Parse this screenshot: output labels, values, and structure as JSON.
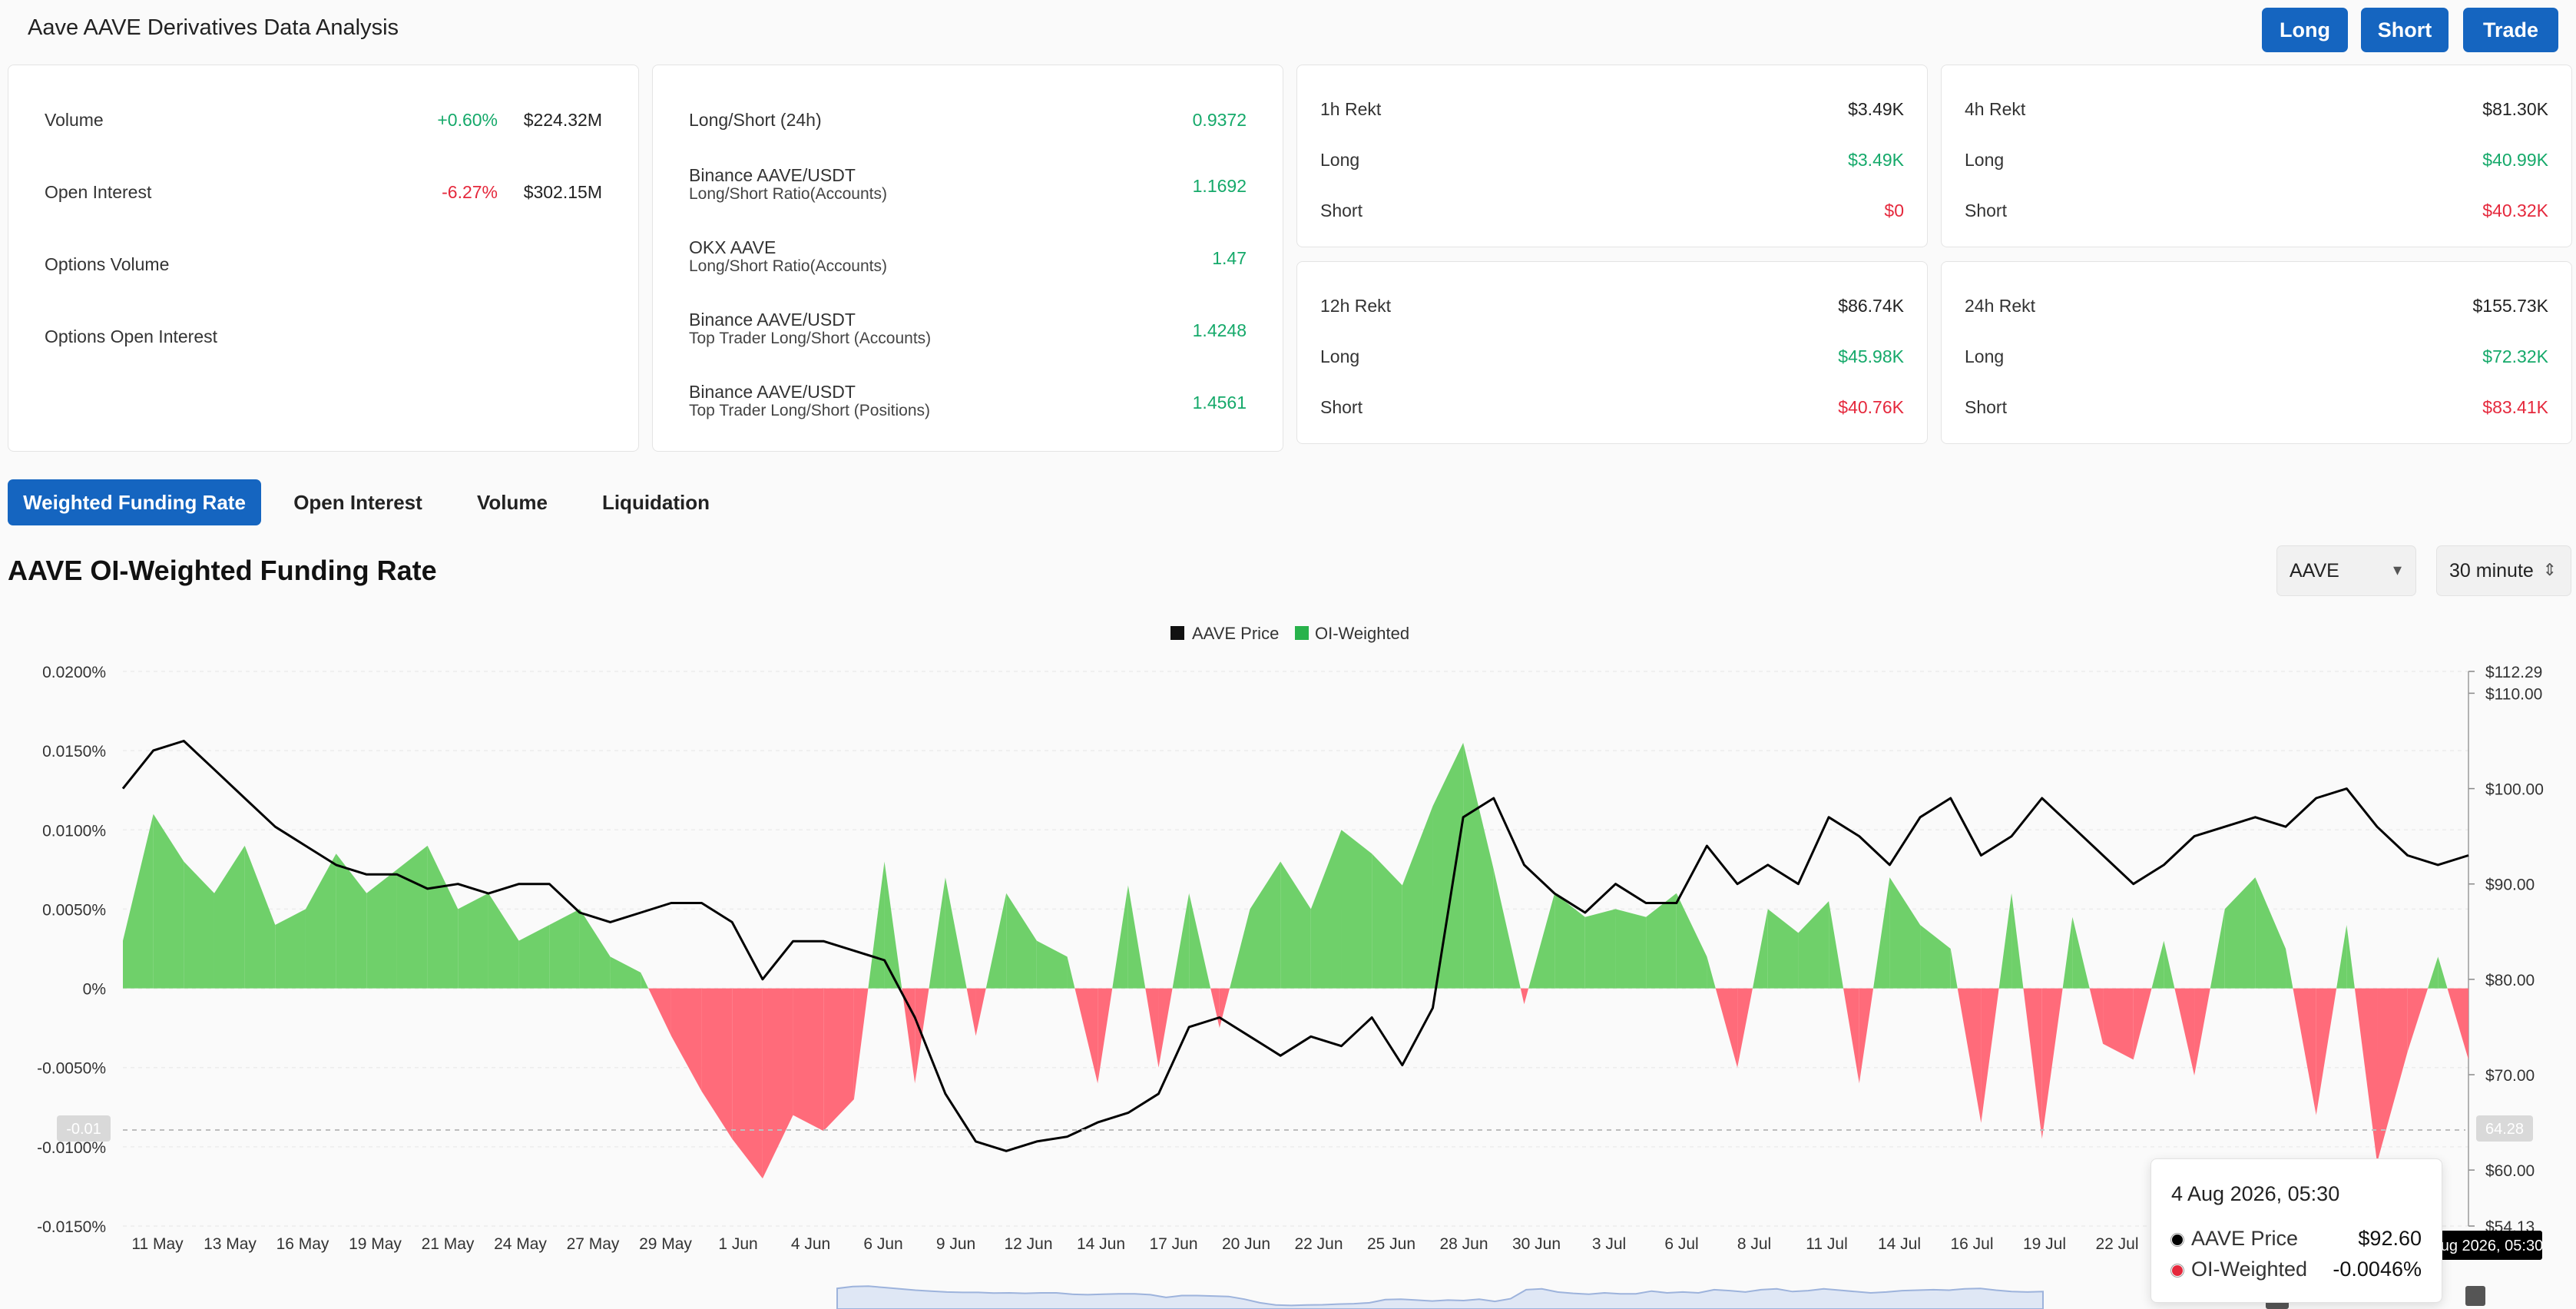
{
  "page": {
    "title": "Aave AAVE Derivatives Data Analysis",
    "buttons": {
      "long": "Long",
      "short": "Short",
      "trade": "Trade"
    }
  },
  "overview": {
    "volume": {
      "label": "Volume",
      "change": "+0.60%",
      "value": "$224.32M"
    },
    "open_interest": {
      "label": "Open Interest",
      "change": "-6.27%",
      "value": "$302.15M"
    },
    "options_volume": {
      "label": "Options Volume"
    },
    "options_open_interest": {
      "label": "Options Open Interest"
    }
  },
  "long_short": {
    "header": {
      "label": "Long/Short (24h)",
      "value": "0.9372"
    },
    "rows": [
      {
        "name": "Binance AAVE/USDT",
        "sub": "Long/Short Ratio(Accounts)",
        "value": "1.1692"
      },
      {
        "name": "OKX AAVE",
        "sub": "Long/Short Ratio(Accounts)",
        "value": "1.47"
      },
      {
        "name": "Binance AAVE/USDT",
        "sub": "Top Trader Long/Short (Accounts)",
        "value": "1.4248"
      },
      {
        "name": "Binance AAVE/USDT",
        "sub": "Top Trader Long/Short (Positions)",
        "value": "1.4561"
      }
    ]
  },
  "rekt": [
    {
      "title": "1h Rekt",
      "total": "$3.49K",
      "long_label": "Long",
      "long": "$3.49K",
      "short_label": "Short",
      "short": "$0"
    },
    {
      "title": "4h Rekt",
      "total": "$81.30K",
      "long_label": "Long",
      "long": "$40.99K",
      "short_label": "Short",
      "short": "$40.32K"
    },
    {
      "title": "12h Rekt",
      "total": "$86.74K",
      "long_label": "Long",
      "long": "$45.98K",
      "short_label": "Short",
      "short": "$40.76K"
    },
    {
      "title": "24h Rekt",
      "total": "$155.73K",
      "long_label": "Long",
      "long": "$72.32K",
      "short_label": "Short",
      "short": "$83.41K"
    }
  ],
  "tabs": [
    "Weighted Funding Rate",
    "Open Interest",
    "Volume",
    "Liquidation"
  ],
  "section": {
    "title": "AAVE OI-Weighted Funding Rate",
    "coin_select": "AAVE",
    "interval_select": "30 minute"
  },
  "colors": {
    "accent": "#1565c0",
    "positive": "#6fd06a",
    "negative": "#ff6b7a",
    "price_line": "#000000"
  },
  "chart_data": {
    "type": "area",
    "title": "",
    "legend": [
      "AAVE Price",
      "OI-Weighted"
    ],
    "legend_position": "top-center",
    "y_left_ticks": [
      "0.0200%",
      "0.0150%",
      "0.0100%",
      "0.0050%",
      "0%",
      "-0.0050%",
      "-0.0100%",
      "-0.0150%"
    ],
    "y_left_range": [
      -0.015,
      0.02
    ],
    "y_right_ticks": [
      "$112.29",
      "$110.00",
      "$100.00",
      "$90.00",
      "$80.00",
      "$70.00",
      "$60.00",
      "$54.13"
    ],
    "y_right_range": [
      54.13,
      112.29
    ],
    "x_ticks": [
      "11 May",
      "13 May",
      "16 May",
      "19 May",
      "21 May",
      "24 May",
      "27 May",
      "29 May",
      "1 Jun",
      "4 Jun",
      "6 Jun",
      "9 Jun",
      "12 Jun",
      "14 Jun",
      "17 Jun",
      "20 Jun",
      "22 Jun",
      "25 Jun",
      "28 Jun",
      "30 Jun",
      "3 Jul",
      "6 Jul",
      "8 Jul",
      "11 Jul",
      "14 Jul",
      "16 Jul",
      "19 Jul",
      "22 Jul"
    ],
    "crosshair": {
      "left_label": "-0.01",
      "right_label": "64.28",
      "x_label": "4 Aug 2026, 05:30"
    },
    "series": [
      {
        "name": "AAVE Price",
        "values": [
          100,
          104,
          105,
          102,
          99,
          96,
          94,
          92,
          91,
          91,
          89.5,
          90,
          89,
          90,
          90,
          87,
          86,
          87,
          88,
          88,
          86,
          80,
          84,
          84,
          83,
          82,
          76,
          68,
          63,
          62,
          63,
          63.5,
          65,
          66,
          68,
          75,
          76,
          74,
          72,
          74,
          73,
          76,
          71,
          77,
          97,
          99,
          92,
          89,
          87,
          90,
          88,
          88,
          94,
          90,
          92,
          90,
          97,
          95,
          92,
          97,
          99,
          93,
          95,
          99,
          96,
          93,
          90,
          92,
          95,
          96,
          97,
          96,
          99,
          100,
          96,
          93,
          92,
          93
        ]
      },
      {
        "name": "OI-Weighted",
        "values": [
          0.003,
          0.011,
          0.008,
          0.006,
          0.009,
          0.004,
          0.005,
          0.0085,
          0.006,
          0.0075,
          0.009,
          0.005,
          0.006,
          0.003,
          0.004,
          0.005,
          0.002,
          0.001,
          -0.003,
          -0.0065,
          -0.0095,
          -0.012,
          -0.008,
          -0.009,
          -0.007,
          0.008,
          -0.006,
          0.007,
          -0.003,
          0.006,
          0.003,
          0.002,
          -0.006,
          0.0065,
          -0.005,
          0.006,
          -0.0025,
          0.005,
          0.008,
          0.005,
          0.01,
          0.0085,
          0.0065,
          0.0115,
          0.0155,
          0.0075,
          -0.001,
          0.006,
          0.0045,
          0.005,
          0.0045,
          0.006,
          0.002,
          -0.005,
          0.005,
          0.0035,
          0.0055,
          -0.006,
          0.007,
          0.004,
          0.0025,
          -0.0085,
          0.006,
          -0.0095,
          0.0045,
          -0.0035,
          -0.0045,
          0.003,
          -0.0055,
          0.005,
          0.007,
          0.0025,
          -0.008,
          0.004,
          -0.011,
          -0.004,
          0.002,
          -0.0045
        ]
      }
    ]
  },
  "tooltip": {
    "date": "4 Aug 2026, 05:30",
    "price_label": "AAVE Price",
    "price_value": "$92.60",
    "oi_label": "OI-Weighted",
    "oi_value": "-0.0046%"
  }
}
